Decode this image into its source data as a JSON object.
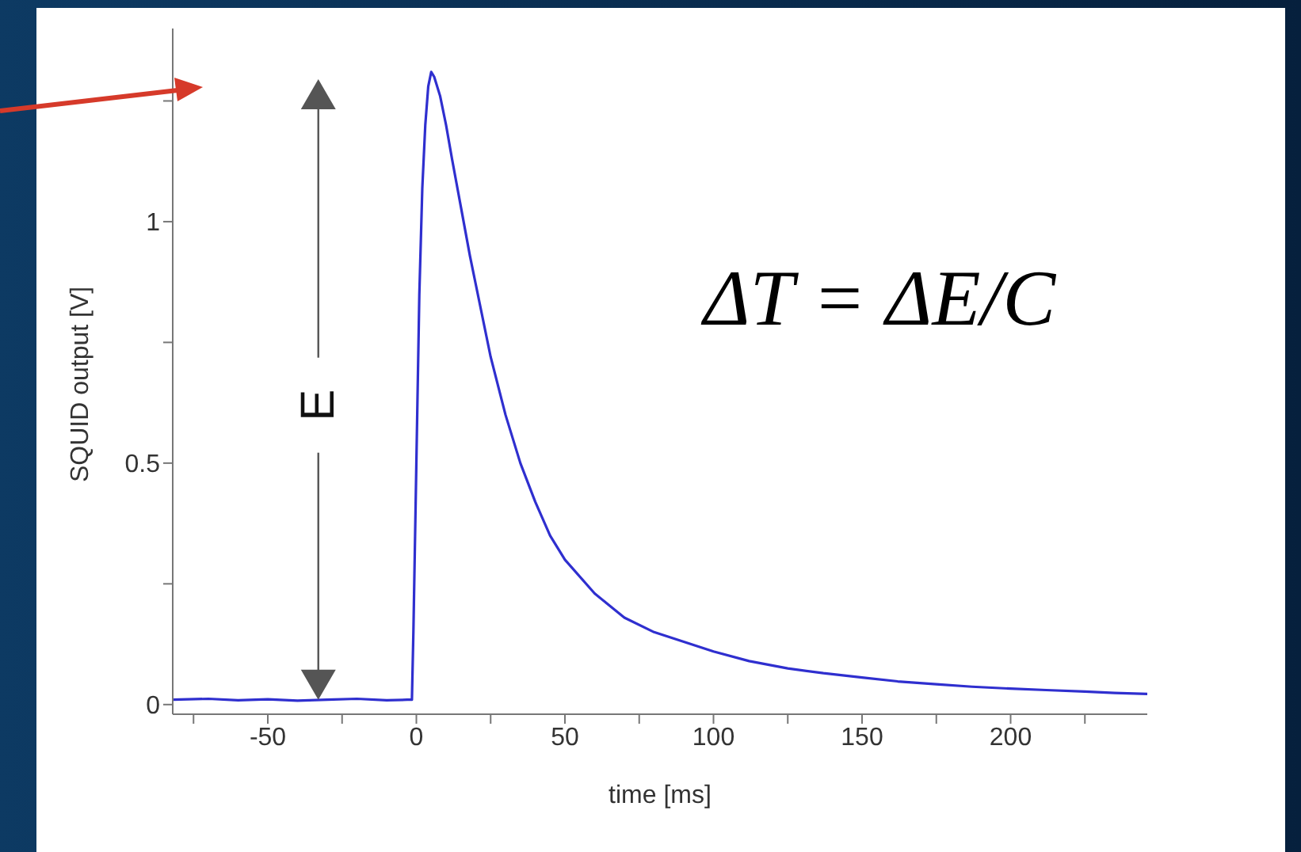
{
  "chart_data": {
    "type": "line",
    "xlabel": "time [ms]",
    "ylabel": "SQUID output [V]",
    "xlim": [
      -82,
      246
    ],
    "ylim": [
      -0.02,
      1.4
    ],
    "xticks": [
      {
        "value": -75,
        "label": null
      },
      -50,
      {
        "value": -25,
        "label": null
      },
      0,
      {
        "value": 25,
        "label": null
      },
      50,
      {
        "value": 75,
        "label": null
      },
      100,
      {
        "value": 125,
        "label": null
      },
      150,
      {
        "value": 175,
        "label": null
      },
      200,
      {
        "value": 225,
        "label": null
      }
    ],
    "yticks": [
      0,
      {
        "value": 0.25,
        "label": null
      },
      0.5,
      {
        "value": 0.75,
        "label": null
      },
      1,
      {
        "value": 1.25,
        "label": null
      }
    ],
    "grid": false,
    "marker": "none",
    "line_style": "solid",
    "annotations": [
      "E",
      "ΔT = ΔE/C"
    ],
    "series": [
      {
        "color": "#2f2fcf",
        "x": [
          -82,
          -70,
          -60,
          -50,
          -40,
          -30,
          -20,
          -10,
          -3,
          -1.5,
          -1,
          0,
          1,
          2,
          3,
          4,
          5,
          6,
          8,
          10,
          12,
          15,
          18,
          20,
          25,
          30,
          35,
          40,
          45,
          50,
          60,
          70,
          80,
          90,
          100,
          112,
          125,
          137,
          150,
          162,
          175,
          187,
          200,
          212,
          225,
          235,
          246
        ],
        "values": [
          0.01,
          0.012,
          0.009,
          0.011,
          0.008,
          0.01,
          0.012,
          0.009,
          0.01,
          0.01,
          0.15,
          0.5,
          0.85,
          1.07,
          1.2,
          1.28,
          1.31,
          1.3,
          1.26,
          1.2,
          1.13,
          1.03,
          0.93,
          0.87,
          0.72,
          0.6,
          0.5,
          0.42,
          0.35,
          0.3,
          0.23,
          0.18,
          0.15,
          0.13,
          0.11,
          0.09,
          0.075,
          0.065,
          0.056,
          0.048,
          0.042,
          0.037,
          0.033,
          0.03,
          0.027,
          0.024,
          0.022
        ]
      }
    ]
  }
}
